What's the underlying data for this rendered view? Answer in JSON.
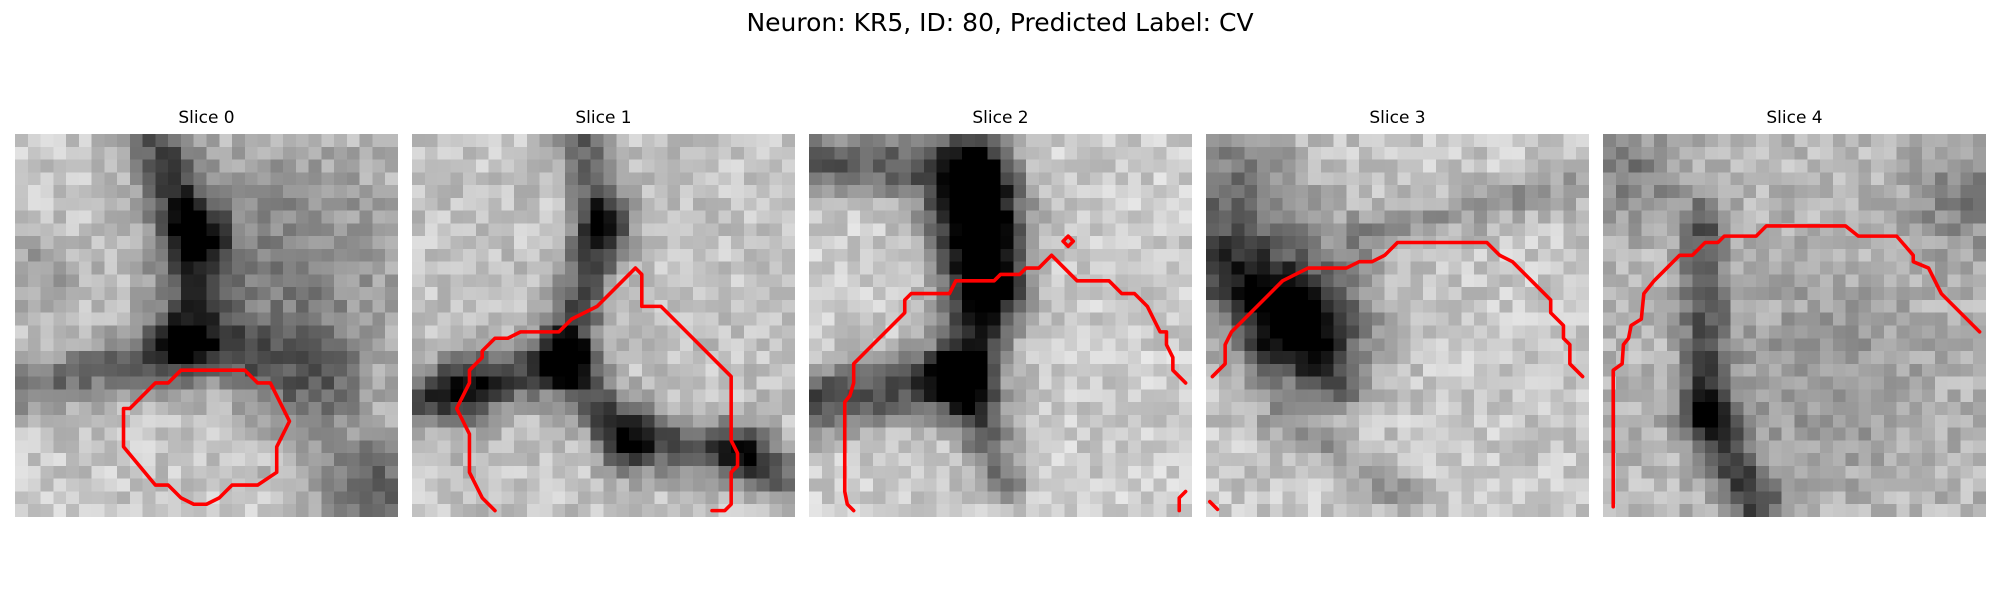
{
  "figure": {
    "title": "Neuron: KR5, ID: 80, Predicted Label: CV",
    "contour_color": "#ff0000",
    "image_colormap": "gray",
    "axes_visible": false,
    "image_grid_size": 30
  },
  "panels": [
    {
      "title": "Slice 0",
      "image": {
        "base": 200,
        "features": [
          {
            "type": "line",
            "x1": 11,
            "y1": 0,
            "x2": 14,
            "y2": 8,
            "width": 1.6,
            "depth": 120
          },
          {
            "type": "line",
            "x1": 14,
            "y1": 8,
            "x2": 14,
            "y2": 15,
            "width": 1.8,
            "depth": 110
          },
          {
            "type": "line",
            "x1": 0,
            "y1": 20,
            "x2": 13,
            "y2": 17,
            "width": 1.6,
            "depth": 90
          },
          {
            "type": "line",
            "x1": 13,
            "y1": 17,
            "x2": 18,
            "y2": 17,
            "width": 1.6,
            "depth": 80
          },
          {
            "type": "blob",
            "cx": 21,
            "cy": 10,
            "r": 7,
            "depth": 70
          },
          {
            "type": "blob",
            "cx": 23,
            "cy": 19,
            "r": 3,
            "depth": 90
          },
          {
            "type": "blob",
            "cx": 28,
            "cy": 28,
            "r": 3,
            "depth": 110
          },
          {
            "type": "blob",
            "cx": 2,
            "cy": 11,
            "r": 2,
            "depth": 50
          }
        ]
      },
      "contours": [
        [
          [
            9,
            21.5
          ],
          [
            11,
            19.5
          ],
          [
            12,
            19.5
          ],
          [
            13,
            18.5
          ],
          [
            18,
            18.5
          ],
          [
            19,
            19.5
          ],
          [
            20,
            19.5
          ],
          [
            20.5,
            20.5
          ],
          [
            21,
            21.5
          ],
          [
            21.5,
            22.5
          ],
          [
            21,
            23.5
          ],
          [
            20.5,
            24.5
          ],
          [
            20.5,
            26.5
          ],
          [
            19,
            27.5
          ],
          [
            17,
            27.5
          ],
          [
            16,
            28.5
          ],
          [
            15,
            29
          ],
          [
            14,
            29
          ],
          [
            13,
            28.5
          ],
          [
            12,
            27.5
          ],
          [
            11,
            27.5
          ],
          [
            8.5,
            24.5
          ],
          [
            8.5,
            21.5
          ],
          [
            9,
            21.5
          ]
        ]
      ]
    },
    {
      "title": "Slice 1",
      "image": {
        "base": 195,
        "features": [
          {
            "type": "line",
            "x1": 13,
            "y1": 0,
            "x2": 15,
            "y2": 7,
            "width": 1.3,
            "depth": 100
          },
          {
            "type": "line",
            "x1": 15,
            "y1": 7,
            "x2": 12,
            "y2": 17,
            "width": 1.5,
            "depth": 120
          },
          {
            "type": "line",
            "x1": 0,
            "y1": 21,
            "x2": 12,
            "y2": 18,
            "width": 1.5,
            "depth": 110
          },
          {
            "type": "line",
            "x1": 12,
            "y1": 18,
            "x2": 17,
            "y2": 24,
            "width": 1.5,
            "depth": 110
          },
          {
            "type": "line",
            "x1": 17,
            "y1": 24,
            "x2": 26,
            "y2": 25,
            "width": 1.6,
            "depth": 110
          },
          {
            "type": "line",
            "x1": 26,
            "y1": 25,
            "x2": 29,
            "y2": 27,
            "width": 1.4,
            "depth": 90
          },
          {
            "type": "blob",
            "cx": 4,
            "cy": 20,
            "r": 2,
            "depth": 90
          }
        ]
      },
      "contours": [
        [
          [
            6.5,
            29.5
          ],
          [
            5.5,
            28.5
          ],
          [
            5,
            27.5
          ],
          [
            4.5,
            26.5
          ],
          [
            4.5,
            23.5
          ],
          [
            4,
            22.5
          ],
          [
            3.5,
            21.5
          ],
          [
            4,
            20.5
          ],
          [
            4.5,
            19.5
          ],
          [
            4.5,
            18.5
          ],
          [
            5.5,
            17.5
          ],
          [
            5.5,
            17
          ],
          [
            6.5,
            16
          ],
          [
            7.5,
            16
          ],
          [
            8.5,
            15.5
          ],
          [
            9.5,
            15.5
          ],
          [
            10.5,
            15.5
          ],
          [
            11.5,
            15.5
          ],
          [
            12,
            15
          ],
          [
            12.5,
            14.5
          ],
          [
            13.5,
            14
          ],
          [
            14.5,
            13.5
          ],
          [
            15,
            13
          ],
          [
            16.5,
            11.5
          ],
          [
            17.5,
            10.5
          ],
          [
            18,
            11
          ],
          [
            18,
            13.5
          ],
          [
            18.5,
            13.5
          ],
          [
            19.5,
            13.5
          ],
          [
            20.5,
            14.5
          ],
          [
            22.5,
            16.5
          ],
          [
            24,
            18
          ],
          [
            25,
            19
          ],
          [
            25,
            20
          ],
          [
            25,
            21
          ],
          [
            25,
            22
          ],
          [
            25,
            23
          ],
          [
            25,
            24
          ],
          [
            25.5,
            25
          ],
          [
            25.5,
            26
          ],
          [
            25,
            26.5
          ],
          [
            25,
            29
          ],
          [
            24.5,
            29.5
          ],
          [
            23.5,
            29.5
          ]
        ]
      ]
    },
    {
      "title": "Slice 2",
      "image": {
        "base": 205,
        "features": [
          {
            "type": "line",
            "x1": 0,
            "y1": 2,
            "x2": 13,
            "y2": 3,
            "width": 1.8,
            "depth": 110
          },
          {
            "type": "line",
            "x1": 13,
            "y1": 3,
            "x2": 14,
            "y2": 12,
            "width": 2.2,
            "depth": 140
          },
          {
            "type": "line",
            "x1": 14,
            "y1": 12,
            "x2": 12,
            "y2": 19,
            "width": 2,
            "depth": 120
          },
          {
            "type": "line",
            "x1": 0,
            "y1": 21,
            "x2": 12,
            "y2": 19,
            "width": 1.8,
            "depth": 130
          },
          {
            "type": "line",
            "x1": 12,
            "y1": 19,
            "x2": 15,
            "y2": 27,
            "width": 1.4,
            "depth": 100
          },
          {
            "type": "blob",
            "cx": 13,
            "cy": 7,
            "r": 2.5,
            "depth": 140
          }
        ]
      },
      "contours": [
        [
          [
            3.5,
            29.5
          ],
          [
            3,
            29
          ],
          [
            2.8,
            28
          ],
          [
            2.8,
            21
          ],
          [
            3.2,
            20.5
          ],
          [
            3.5,
            19.5
          ],
          [
            3.5,
            18
          ],
          [
            4.5,
            17
          ],
          [
            5.5,
            16
          ],
          [
            6.5,
            15
          ],
          [
            7.5,
            14
          ],
          [
            7.5,
            13
          ],
          [
            8,
            12.5
          ],
          [
            11,
            12.5
          ],
          [
            11.5,
            11.5
          ],
          [
            14.5,
            11.5
          ],
          [
            15,
            11
          ],
          [
            16.5,
            11
          ],
          [
            17,
            10.5
          ],
          [
            18,
            10.5
          ],
          [
            19,
            9.5
          ],
          [
            20,
            10.5
          ],
          [
            21,
            11.5
          ],
          [
            23.5,
            11.5
          ],
          [
            24,
            12
          ],
          [
            24.5,
            12.5
          ],
          [
            25.5,
            12.5
          ],
          [
            26.5,
            13.5
          ],
          [
            27,
            14.5
          ],
          [
            27.5,
            15.5
          ],
          [
            28,
            15.5
          ],
          [
            28,
            16.5
          ],
          [
            28.5,
            17.5
          ],
          [
            28.5,
            18.5
          ],
          [
            29,
            19
          ],
          [
            29.5,
            19.5
          ]
        ],
        [
          [
            20.3,
            8
          ],
          [
            20.7,
            8.4
          ],
          [
            20.3,
            8.8
          ],
          [
            19.9,
            8.4
          ],
          [
            20.3,
            8
          ]
        ],
        [
          [
            29.5,
            28
          ],
          [
            29,
            28.5
          ],
          [
            29,
            29.5
          ]
        ]
      ]
    },
    {
      "title": "Slice 3",
      "image": {
        "base": 200,
        "features": [
          {
            "type": "blob",
            "cx": 7,
            "cy": 14,
            "r": 4,
            "depth": 130
          },
          {
            "type": "blob",
            "cx": 2,
            "cy": 5,
            "r": 4,
            "depth": 90
          },
          {
            "type": "line",
            "x1": 0,
            "y1": 10,
            "x2": 9,
            "y2": 15,
            "width": 2,
            "depth": 100
          },
          {
            "type": "line",
            "x1": 5,
            "y1": 16,
            "x2": 11,
            "y2": 20,
            "width": 1.4,
            "depth": 70
          },
          {
            "type": "line",
            "x1": 12,
            "y1": 8,
            "x2": 29,
            "y2": 4,
            "width": 1.2,
            "depth": 50
          },
          {
            "type": "line",
            "x1": 6,
            "y1": 22,
            "x2": 16,
            "y2": 29,
            "width": 1.2,
            "depth": 50
          }
        ]
      },
      "contours": [
        [
          [
            0.5,
            19
          ],
          [
            1,
            18.5
          ],
          [
            1.5,
            18
          ],
          [
            1.5,
            16.5
          ],
          [
            2,
            15.5
          ],
          [
            3,
            14.5
          ],
          [
            4,
            13.5
          ],
          [
            5,
            12.5
          ],
          [
            6,
            11.5
          ],
          [
            7,
            11
          ],
          [
            8,
            10.5
          ],
          [
            11,
            10.5
          ],
          [
            12,
            10
          ],
          [
            13,
            10
          ],
          [
            14,
            9.5
          ],
          [
            14.5,
            9
          ],
          [
            15,
            8.5
          ],
          [
            22,
            8.5
          ],
          [
            23,
            9.5
          ],
          [
            24,
            10
          ],
          [
            24.5,
            10.5
          ],
          [
            26,
            12
          ],
          [
            27,
            13
          ],
          [
            27,
            14
          ],
          [
            28,
            15
          ],
          [
            28,
            16
          ],
          [
            28.5,
            16.5
          ],
          [
            28.5,
            18
          ],
          [
            29,
            18.5
          ],
          [
            29.5,
            19
          ]
        ],
        [
          [
            0.3,
            28.8
          ],
          [
            0.9,
            29.4
          ]
        ]
      ]
    },
    {
      "title": "Slice 4",
      "image": {
        "base": 185,
        "features": [
          {
            "type": "line",
            "x1": 8,
            "y1": 7,
            "x2": 8,
            "y2": 22,
            "width": 1.3,
            "depth": 100
          },
          {
            "type": "line",
            "x1": 8,
            "y1": 22,
            "x2": 12,
            "y2": 29,
            "width": 1.4,
            "depth": 120
          },
          {
            "type": "blob",
            "cx": 2,
            "cy": 3,
            "r": 3,
            "depth": 60
          },
          {
            "type": "blob",
            "cx": 28,
            "cy": 5,
            "r": 3,
            "depth": 60
          },
          {
            "type": "blob",
            "cx": 17,
            "cy": 19,
            "r": 6,
            "depth": 35
          }
        ]
      },
      "contours": [
        [
          [
            0.8,
            29.2
          ],
          [
            0.8,
            18.5
          ],
          [
            1.5,
            18
          ],
          [
            1.6,
            16.5
          ],
          [
            2,
            16
          ],
          [
            2.2,
            15
          ],
          [
            3,
            14.5
          ],
          [
            3.2,
            12.5
          ],
          [
            4,
            11.5
          ],
          [
            5,
            10.5
          ],
          [
            6,
            9.5
          ],
          [
            7,
            9.5
          ],
          [
            8,
            8.5
          ],
          [
            9,
            8.5
          ],
          [
            9.5,
            8
          ],
          [
            12,
            8
          ],
          [
            12.8,
            7.2
          ],
          [
            19,
            7.2
          ],
          [
            20,
            8
          ],
          [
            23,
            8
          ],
          [
            24.3,
            9.5
          ],
          [
            24.3,
            10
          ],
          [
            25.5,
            10.5
          ],
          [
            26,
            11.5
          ],
          [
            26.5,
            12.5
          ],
          [
            27.5,
            13.5
          ],
          [
            28,
            14
          ],
          [
            29.5,
            15.5
          ]
        ]
      ]
    }
  ]
}
